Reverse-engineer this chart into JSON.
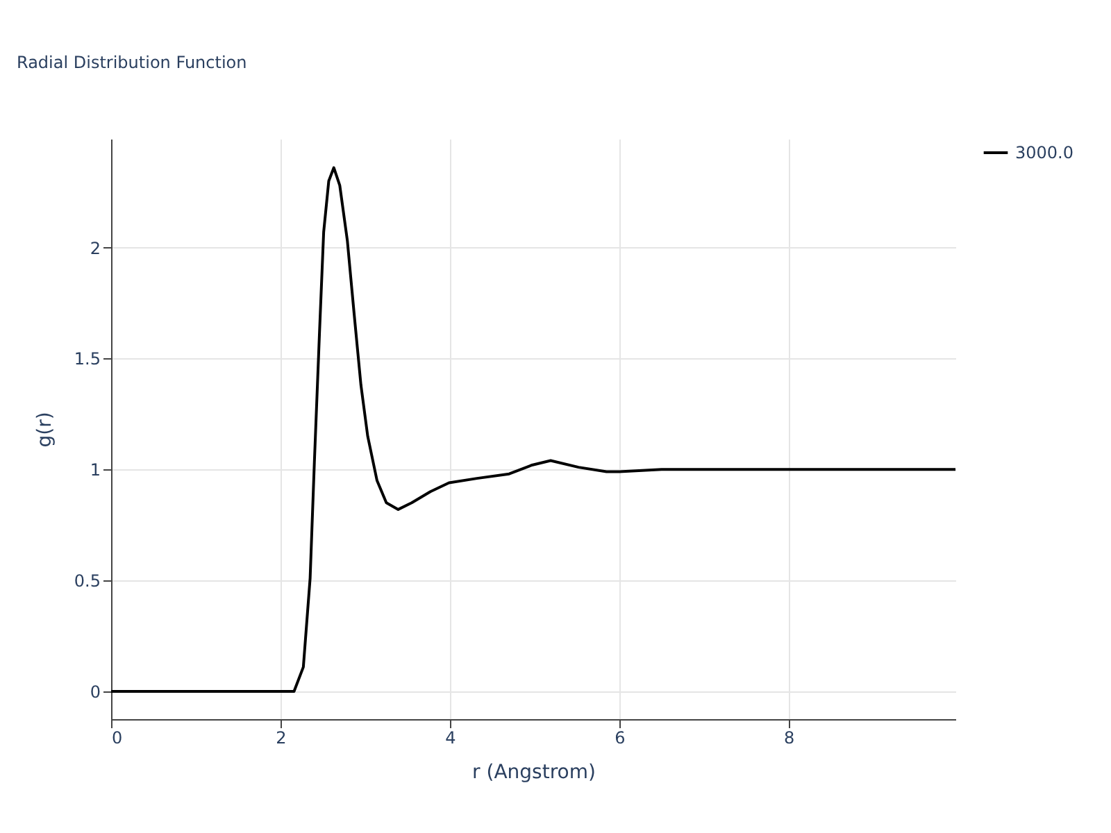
{
  "chart_data": {
    "type": "line",
    "title": "Radial Distribution Function",
    "xlabel": "r (Angstrom)",
    "ylabel": "g(r)",
    "xlim": [
      0,
      9.97
    ],
    "ylim": [
      -0.125,
      2.49
    ],
    "xticks": [
      0,
      2,
      4,
      6,
      8
    ],
    "yticks": [
      0,
      0.5,
      1,
      1.5,
      2
    ],
    "grid": true,
    "legend": "top right",
    "series": [
      {
        "name": "3000.0",
        "color": "#000000",
        "x": [
          0,
          1,
          2,
          2.16,
          2.27,
          2.35,
          2.4,
          2.46,
          2.51,
          2.57,
          2.63,
          2.7,
          2.79,
          2.87,
          2.95,
          3.03,
          3.14,
          3.25,
          3.39,
          3.55,
          3.77,
          3.99,
          4.32,
          4.7,
          4.97,
          5.19,
          5.52,
          5.85,
          6.0,
          6.5,
          7.0,
          7.5,
          8.0,
          8.5,
          9.0,
          9.5,
          9.97
        ],
        "values": [
          0,
          0,
          0,
          0,
          0.11,
          0.51,
          1.03,
          1.61,
          2.07,
          2.3,
          2.36,
          2.28,
          2.03,
          1.7,
          1.38,
          1.15,
          0.95,
          0.85,
          0.82,
          0.85,
          0.9,
          0.94,
          0.96,
          0.98,
          1.02,
          1.04,
          1.01,
          0.99,
          0.99,
          1.0,
          1.0,
          1.0,
          1.0,
          1.0,
          1.0,
          1.0,
          1.0
        ]
      }
    ]
  }
}
